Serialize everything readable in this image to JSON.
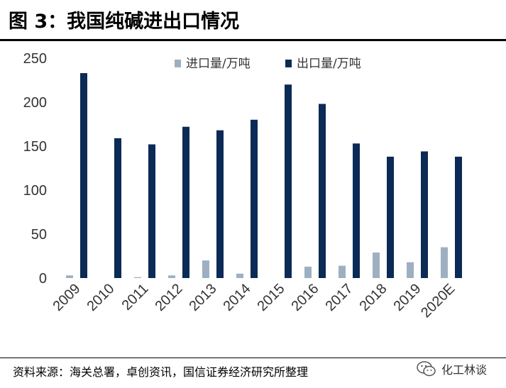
{
  "figure": {
    "title": "图 3：我国纯碱进出口情况",
    "source": "资料来源：海关总署，卓创资讯，国信证券经济研究所整理",
    "watermark": "化工林谈"
  },
  "chart_data": {
    "type": "bar",
    "title": "",
    "xlabel": "",
    "ylabel": "",
    "ylim": [
      0,
      250
    ],
    "yticks": [
      "0",
      "50",
      "100",
      "150",
      "200",
      "250"
    ],
    "categories": [
      "2009",
      "2010",
      "2011",
      "2012",
      "2013",
      "2014",
      "2015",
      "2016",
      "2017",
      "2018",
      "2019",
      "2020E"
    ],
    "series": [
      {
        "name": "进口量/万吨",
        "color": "#9eafc2",
        "values": [
          3,
          0,
          1,
          3,
          20,
          5,
          0,
          13,
          14,
          29,
          18,
          35
        ]
      },
      {
        "name": "出口量/万吨",
        "color": "#0b2a55",
        "values": [
          233,
          159,
          152,
          172,
          168,
          180,
          220,
          198,
          153,
          138,
          144,
          138
        ]
      }
    ],
    "legend_position": "top-center",
    "grid": false
  }
}
